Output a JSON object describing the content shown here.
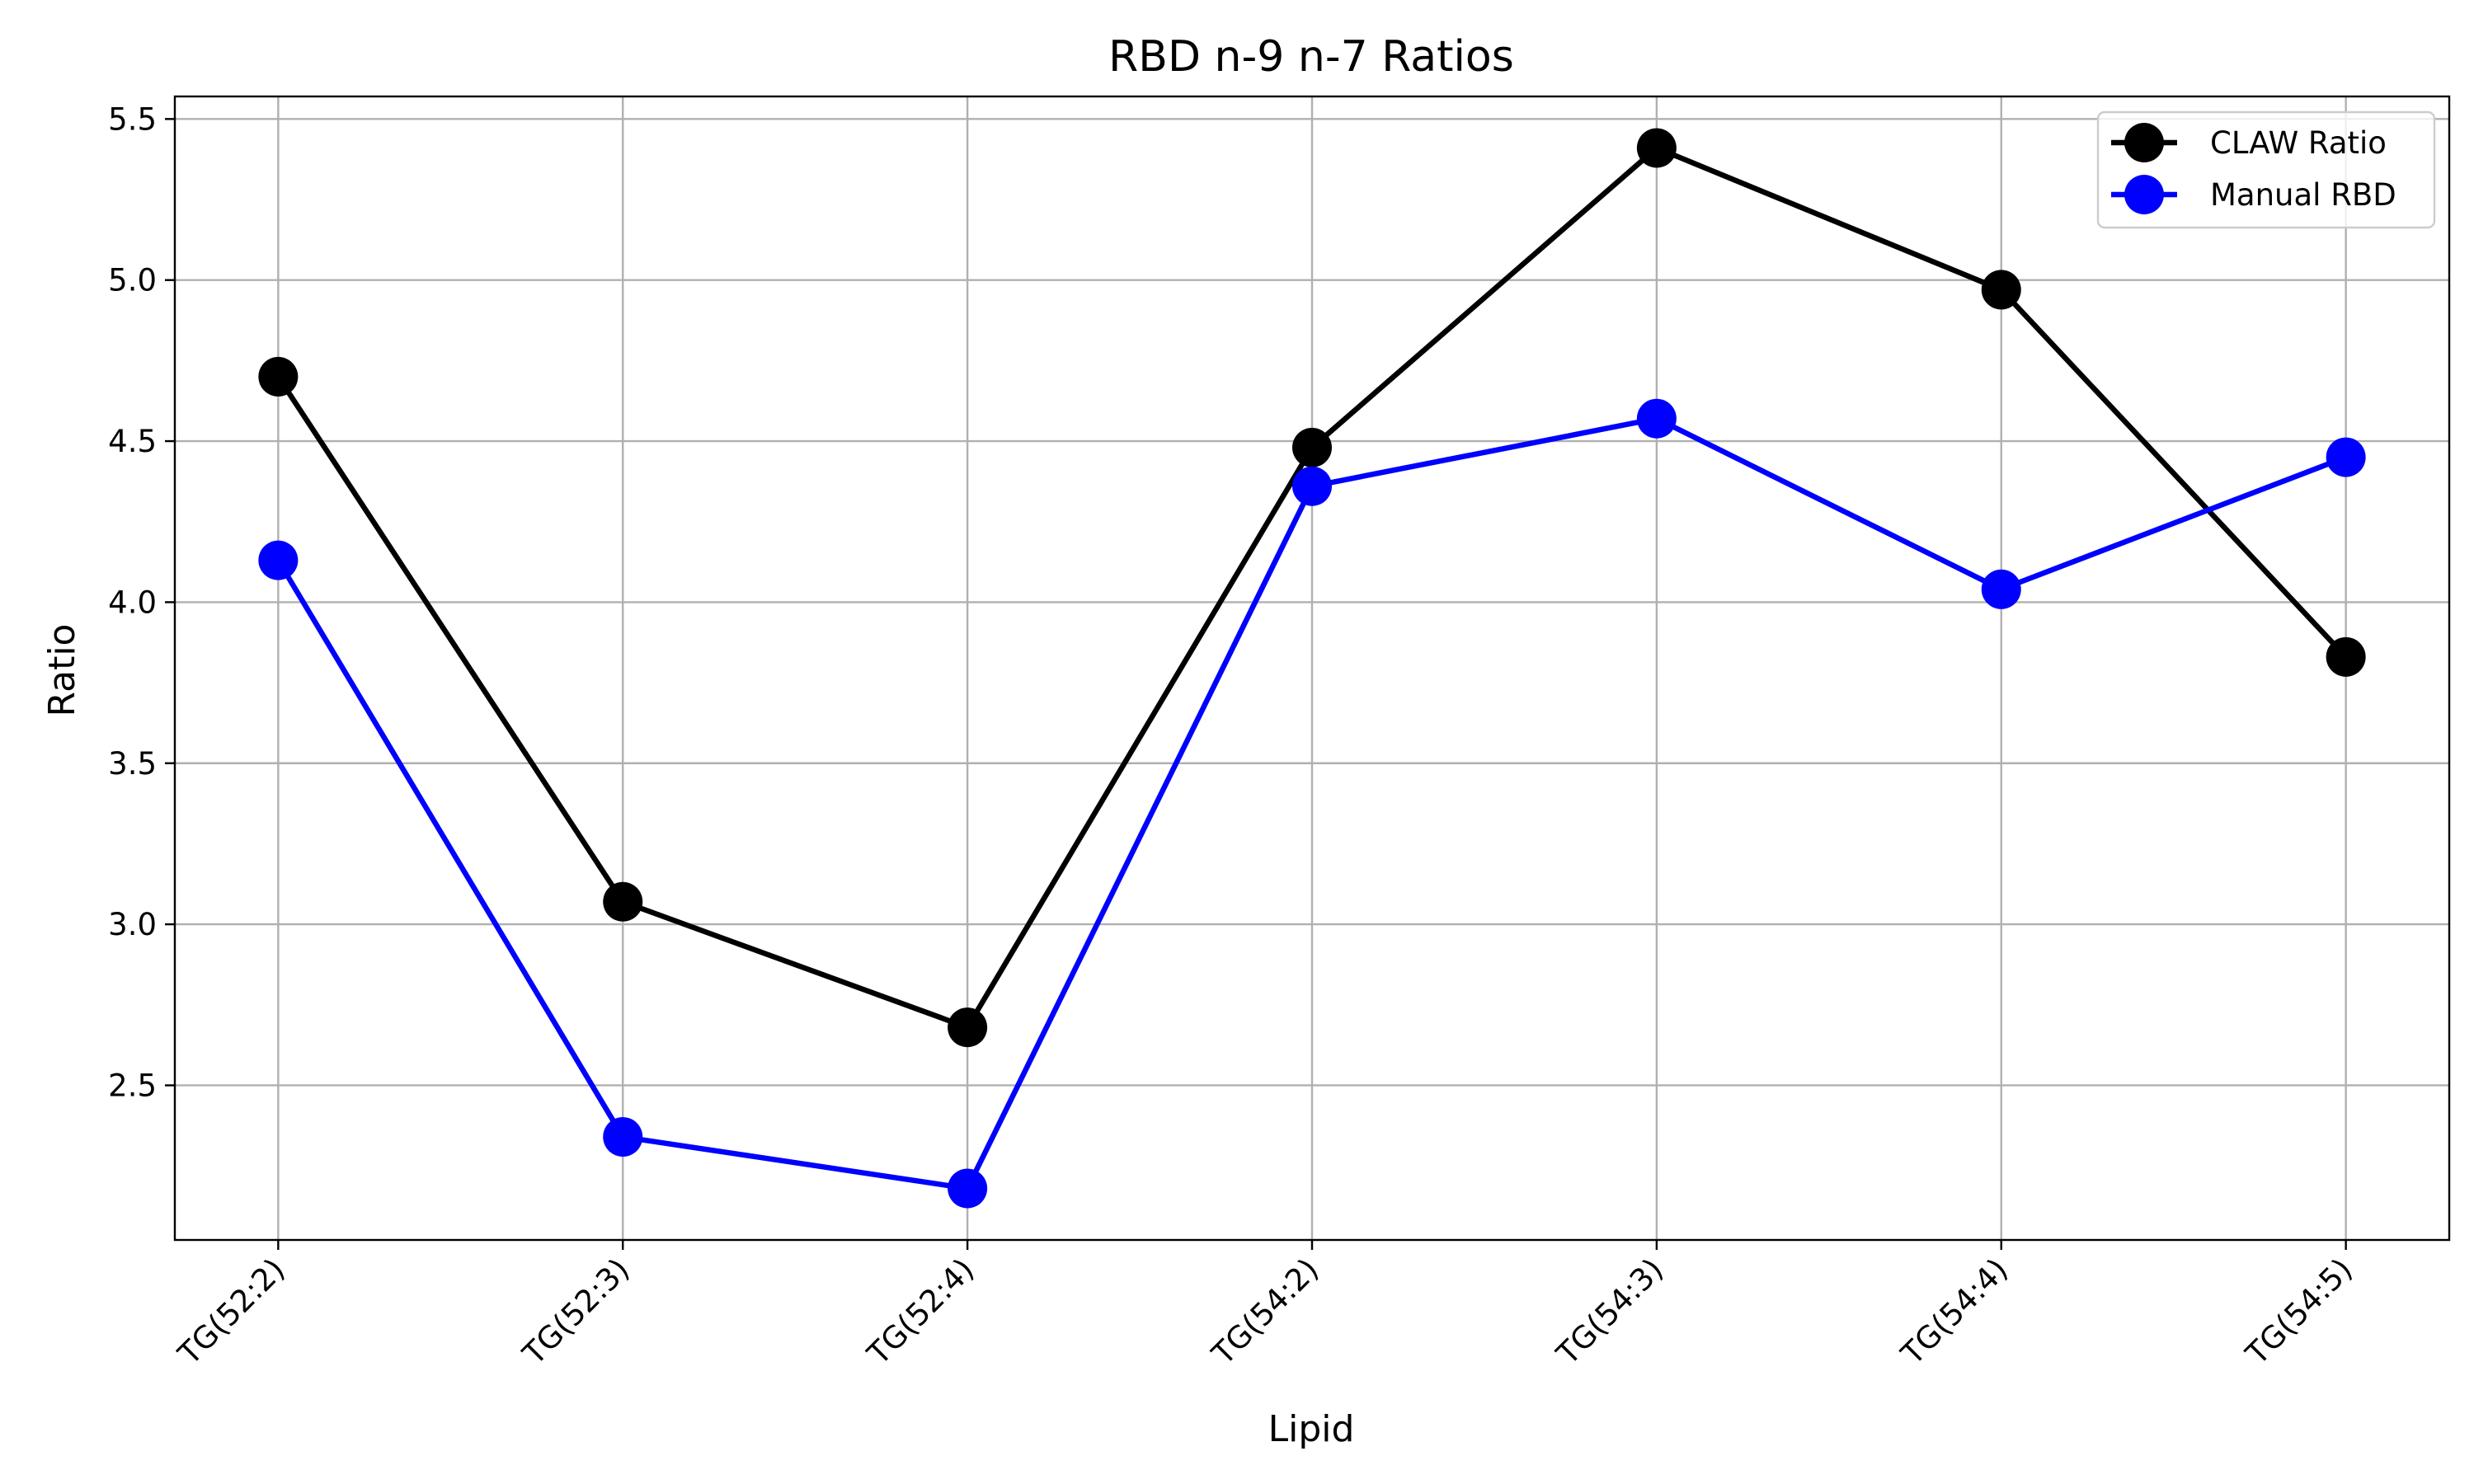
{
  "chart_data": {
    "type": "line",
    "title": "RBD n-9 n-7 Ratios",
    "xlabel": "Lipid",
    "ylabel": "Ratio",
    "categories": [
      "TG(52:2)",
      "TG(52:3)",
      "TG(52:4)",
      "TG(54:2)",
      "TG(54:3)",
      "TG(54:4)",
      "TG(54:5)"
    ],
    "yticks": [
      2.5,
      3.0,
      3.5,
      4.0,
      4.5,
      5.0,
      5.5
    ],
    "ylim": [
      2.02,
      5.57
    ],
    "grid": true,
    "legend_position": "top-right",
    "series": [
      {
        "name": "CLAW Ratio",
        "color": "#000000",
        "values": [
          4.7,
          3.07,
          2.68,
          4.48,
          5.41,
          4.97,
          3.83
        ]
      },
      {
        "name": "Manual RBD",
        "color": "#0000ff",
        "values": [
          4.13,
          2.34,
          2.18,
          4.36,
          4.57,
          4.04,
          4.45
        ]
      }
    ]
  }
}
